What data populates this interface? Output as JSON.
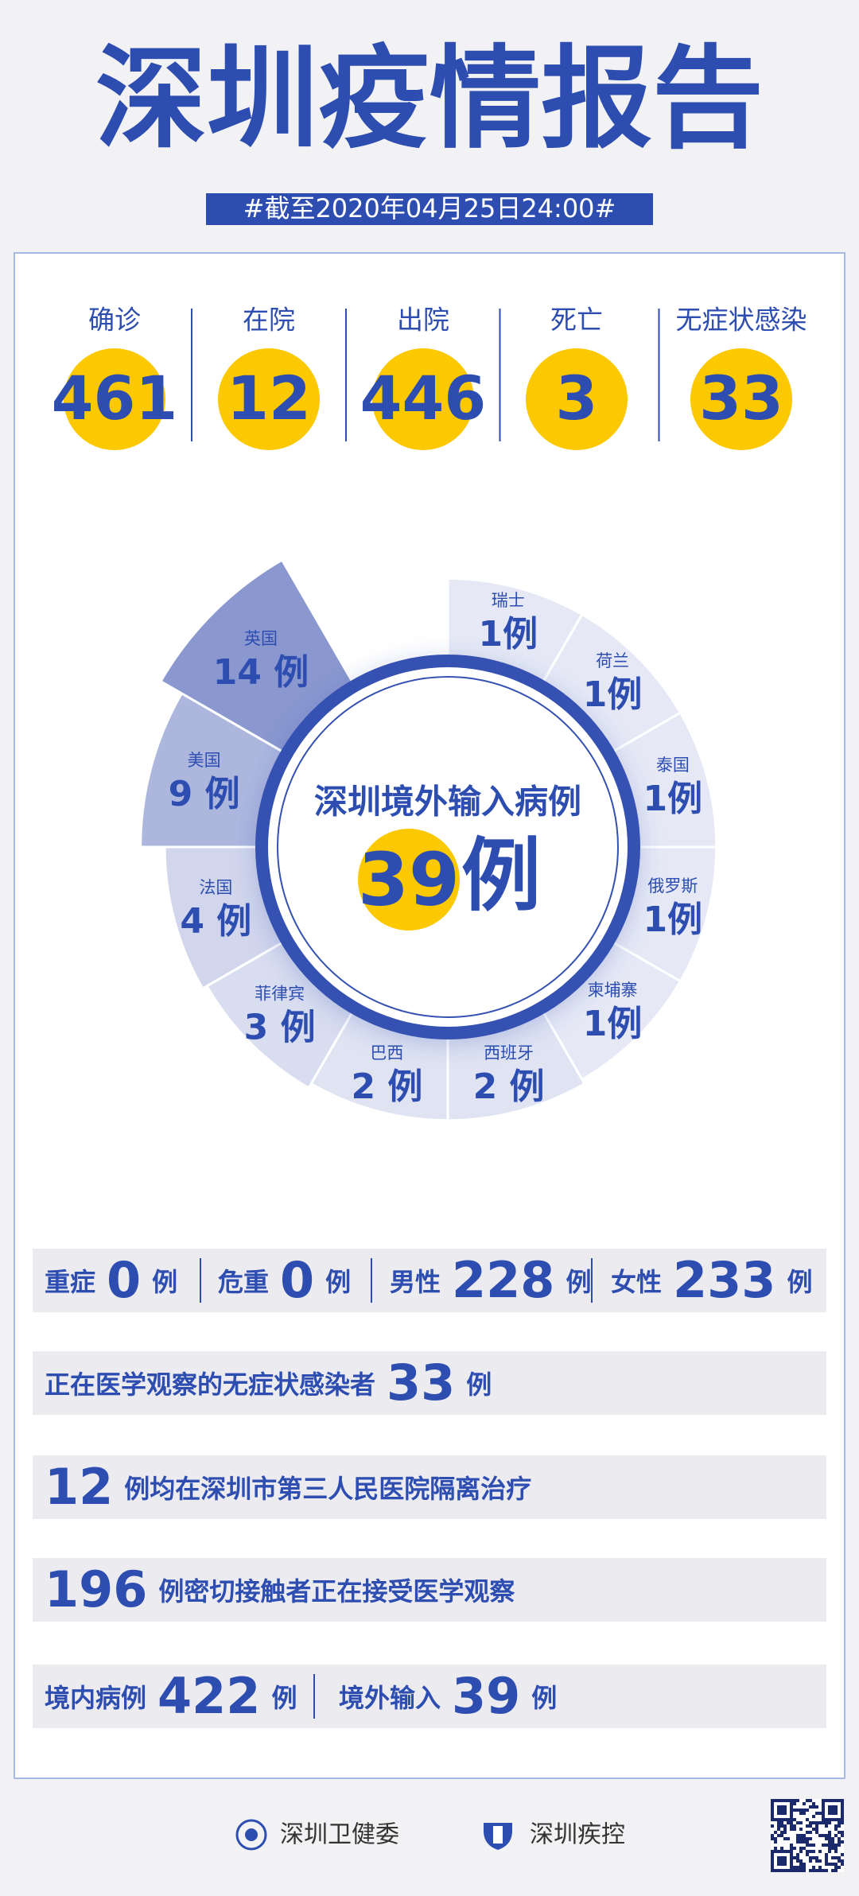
{
  "header": {
    "title": "深圳疫情报告",
    "subtitle": "#截至2020年04月25日24:00#"
  },
  "stats": [
    {
      "label": "确诊",
      "value": 461
    },
    {
      "label": "在院",
      "value": 12
    },
    {
      "label": "出院",
      "value": 446
    },
    {
      "label": "死亡",
      "value": 3
    },
    {
      "label": "无症状感染",
      "value": 33
    }
  ],
  "imported": {
    "title": "深圳境外输入病例",
    "total": 39,
    "unit": "例",
    "countries": [
      {
        "name": "瑞士",
        "value": 1,
        "value_label": "1例"
      },
      {
        "name": "荷兰",
        "value": 1,
        "value_label": "1例"
      },
      {
        "name": "泰国",
        "value": 1,
        "value_label": "1例"
      },
      {
        "name": "俄罗斯",
        "value": 1,
        "value_label": "1例"
      },
      {
        "name": "柬埔寨",
        "value": 1,
        "value_label": "1例"
      },
      {
        "name": "西班牙",
        "value": 2,
        "value_label": "2 例"
      },
      {
        "name": "巴西",
        "value": 2,
        "value_label": "2 例"
      },
      {
        "name": "菲律宾",
        "value": 3,
        "value_label": "3 例"
      },
      {
        "name": "法国",
        "value": 4,
        "value_label": "4 例"
      },
      {
        "name": "美国",
        "value": 9,
        "value_label": "9 例"
      },
      {
        "name": "英国",
        "value": 14,
        "value_label": "14 例"
      }
    ]
  },
  "rows": [
    [
      [
        "重症",
        0,
        "例"
      ],
      [
        "危重",
        0,
        "例"
      ],
      [
        "男性",
        228,
        "例"
      ],
      [
        "女性",
        233,
        "例"
      ]
    ],
    [
      [
        "正在医学观察的无症状感染者",
        33,
        "例"
      ]
    ],
    [
      [
        12,
        "例均在深圳市第三人民医院隔离治疗"
      ]
    ],
    [
      [
        196,
        "例密切接触者正在接受医学观察"
      ]
    ],
    [
      [
        "境内病例",
        422,
        "例"
      ],
      [
        "境外输入",
        39,
        "例"
      ]
    ]
  ],
  "footer": {
    "orgs": [
      "深圳卫健委",
      "深圳疾控"
    ]
  }
}
